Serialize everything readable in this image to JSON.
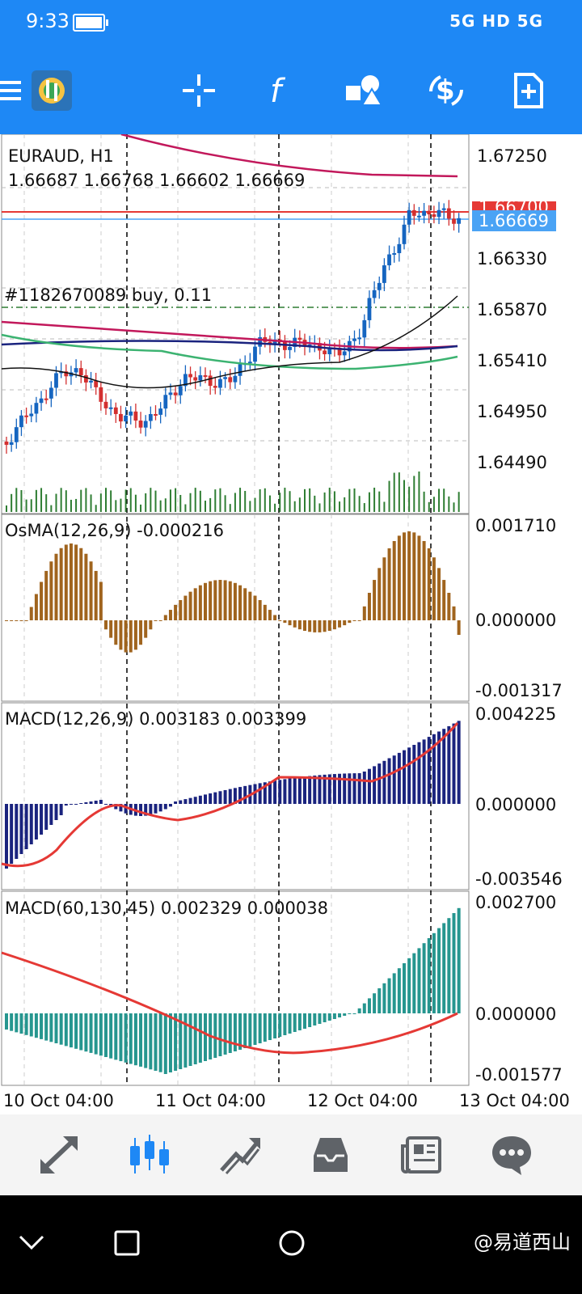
{
  "status_bar": {
    "time": "9:33",
    "indicators": "5G HD 5G",
    "icons": [
      "battery-icon",
      "vibrate-icon",
      "signal-icon",
      "hd-icon"
    ]
  },
  "toolbar": {
    "icons": [
      "menu-icon",
      "metatrader-logo-icon",
      "crosshair-icon",
      "function-icon",
      "objects-icon",
      "trade-dollar-icon",
      "new-order-icon"
    ]
  },
  "chart": {
    "symbol_tf": "EURAUD, H1",
    "ohlc": "1.66687 1.66768 1.66602 1.66669",
    "order_label": "#1182670089 buy, 0.11",
    "current_price": "1.66669",
    "hidden_red_label": "1.66700",
    "price_axis": [
      "1.67250",
      "1.66330",
      "1.65870",
      "1.65410",
      "1.64950",
      "1.64490"
    ],
    "osma": {
      "label": "OsMA(12,26,9) -0.000216",
      "axis": [
        "0.001710",
        "0.000000",
        "-0.001317"
      ]
    },
    "macd1": {
      "label": "MACD(12,26,9) 0.003183 0.003399",
      "axis": [
        "0.004225",
        "0.000000",
        "-0.003546"
      ]
    },
    "macd2": {
      "label": "MACD(60,130,45) 0.002329 0.000038",
      "axis": [
        "0.002700",
        "0.000000",
        "-0.001577"
      ]
    },
    "time_axis": [
      "10 Oct 04:00",
      "11 Oct 04:00",
      "12 Oct 04:00",
      "13 Oct 04:00"
    ],
    "colors": {
      "bull": "#1565c0",
      "bear": "#d32f2f",
      "volume": "#2e7d32",
      "osma": "#a0641e",
      "macd": "#1a237e",
      "macd_signal": "#e53935",
      "macd2": "#26968f",
      "ma_crimson": "#c2185b",
      "ma_navy": "#1a237e",
      "ma_green": "#3cb371",
      "ma_black": "#111111"
    }
  },
  "bottom_nav": {
    "icons": [
      "quotes-icon",
      "chart-icon",
      "trade-icon",
      "history-icon",
      "news-icon",
      "messages-icon"
    ]
  },
  "system_nav": {
    "icons": [
      "back-chevron-icon",
      "recents-square-icon",
      "home-circle-icon"
    ]
  },
  "watermark": "@易道西山"
}
